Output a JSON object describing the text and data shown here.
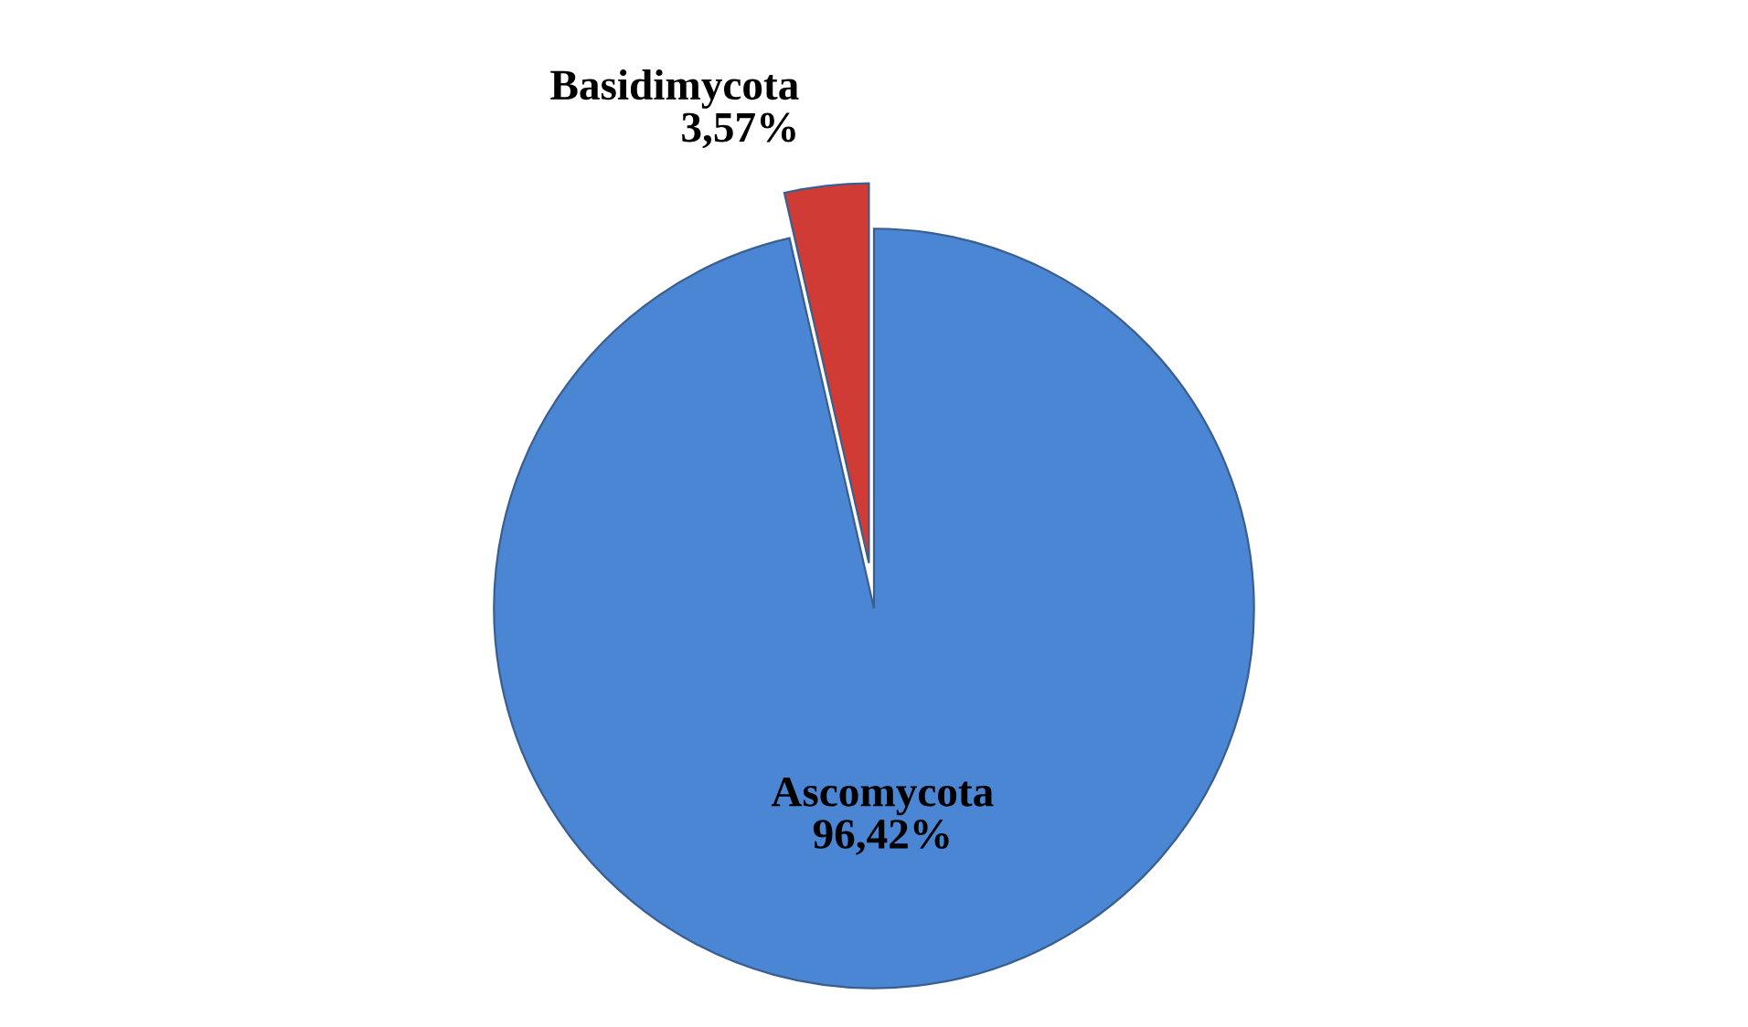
{
  "chart_data": {
    "type": "pie",
    "categories": [
      "Ascomycota",
      "Basidimycota"
    ],
    "values": [
      96.42,
      3.57
    ],
    "colors": [
      "#4a86d4",
      "#d03c35"
    ],
    "value_labels": [
      "96,42%",
      "3,57%"
    ],
    "legend": false
  }
}
